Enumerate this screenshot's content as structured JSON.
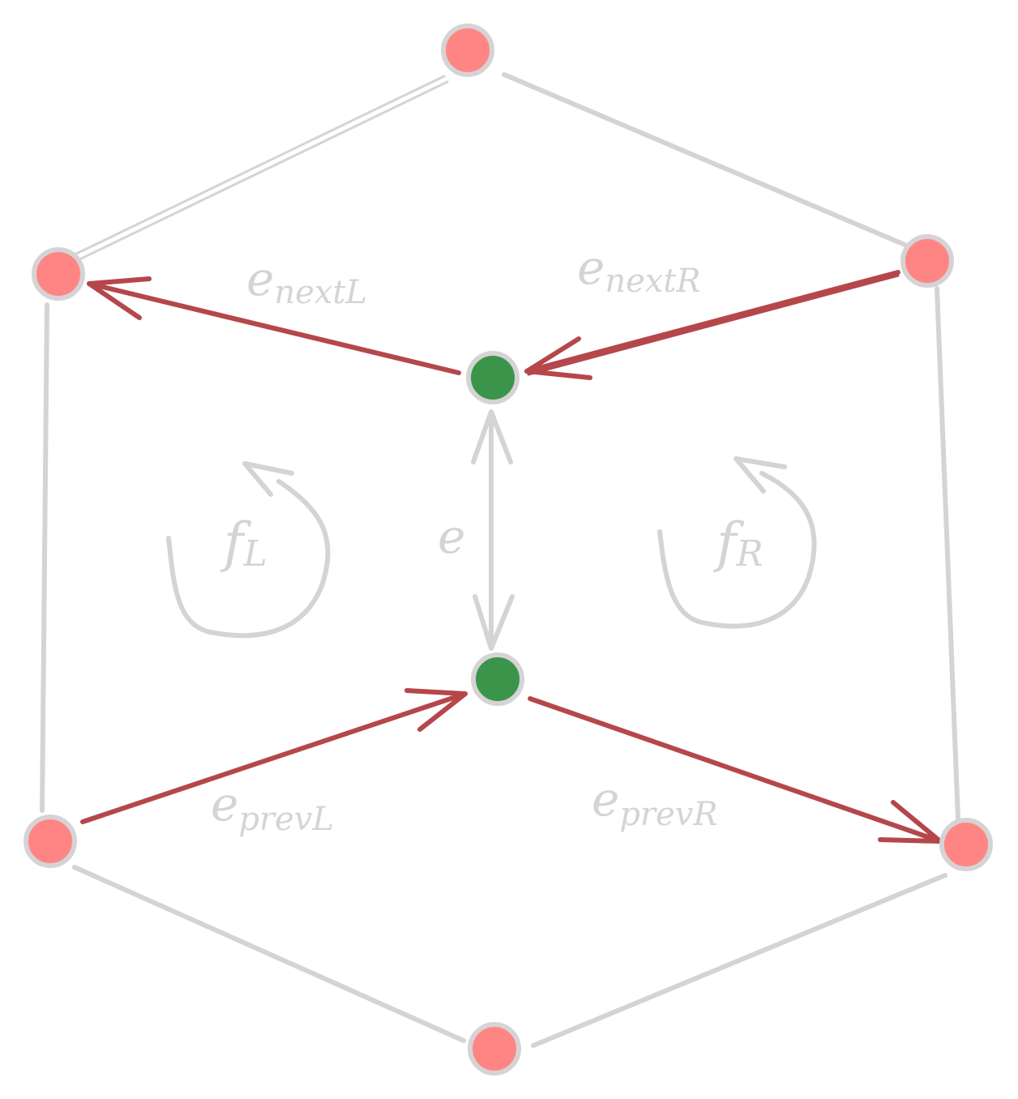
{
  "labels": {
    "e_next_l": {
      "base": "e",
      "sub": "nextL"
    },
    "e_next_r": {
      "base": "e",
      "sub": "nextR"
    },
    "e_prev_l": {
      "base": "e",
      "sub": "prevL"
    },
    "e_prev_r": {
      "base": "e",
      "sub": "prevR"
    },
    "f_l": {
      "base": "f",
      "sub": "L"
    },
    "f_r": {
      "base": "f",
      "sub": "R"
    },
    "e": "e"
  },
  "colors": {
    "outer_vertex": "#ff8585",
    "inner_vertex": "#3a954a",
    "half_edge": "#b5474b",
    "gray": "#d6d3d5"
  }
}
